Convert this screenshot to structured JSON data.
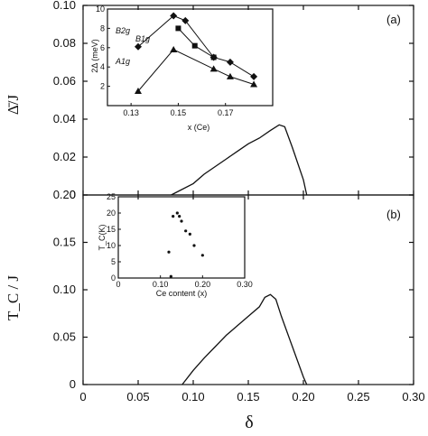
{
  "chart_data": [
    {
      "id": "main_a",
      "type": "line",
      "panel_label": "(a)",
      "ylabel": "Δ̄/J",
      "xlim": [
        0,
        0.3
      ],
      "ylim": [
        0,
        0.1
      ],
      "xticks": [
        0,
        0.05,
        0.1,
        0.15,
        0.2,
        0.25,
        0.3
      ],
      "yticks": [
        0,
        0.02,
        0.04,
        0.06,
        0.08,
        0.1
      ],
      "ytick_labels": [
        "0",
        "0.02",
        "0.04",
        "0.06",
        "0.08",
        "0.10"
      ],
      "x": [
        0.08,
        0.1,
        0.11,
        0.12,
        0.13,
        0.14,
        0.15,
        0.16,
        0.17,
        0.178,
        0.183,
        0.19,
        0.2,
        0.203
      ],
      "y": [
        0.0,
        0.006,
        0.011,
        0.015,
        0.019,
        0.023,
        0.027,
        0.03,
        0.034,
        0.037,
        0.036,
        0.025,
        0.008,
        0.0
      ]
    },
    {
      "id": "main_b",
      "type": "line",
      "panel_label": "(b)",
      "xlabel": "δ",
      "ylabel": "T_C / J",
      "xlim": [
        0,
        0.3
      ],
      "ylim": [
        0,
        0.2
      ],
      "xticks": [
        0,
        0.05,
        0.1,
        0.15,
        0.2,
        0.25,
        0.3
      ],
      "xtick_labels": [
        "0",
        "0.05",
        "0.10",
        "0.15",
        "0.20",
        "0.25",
        "0.30"
      ],
      "yticks": [
        0,
        0.05,
        0.1,
        0.15,
        0.2
      ],
      "ytick_labels": [
        "0",
        "0.05",
        "0.10",
        "0.15",
        "0.20"
      ],
      "x": [
        0.09,
        0.1,
        0.11,
        0.12,
        0.13,
        0.14,
        0.15,
        0.16,
        0.165,
        0.17,
        0.175,
        0.18,
        0.19,
        0.2,
        0.203
      ],
      "y": [
        0.0,
        0.015,
        0.028,
        0.04,
        0.052,
        0.062,
        0.072,
        0.082,
        0.092,
        0.095,
        0.09,
        0.072,
        0.04,
        0.008,
        0.0
      ]
    },
    {
      "id": "inset_a",
      "type": "line",
      "xlabel": "x (Ce)",
      "ylabel": "2Δ (meV)",
      "xlim": [
        0.12,
        0.19
      ],
      "ylim": [
        0,
        10
      ],
      "xticks": [
        0.13,
        0.15,
        0.17
      ],
      "yticks": [
        2,
        4,
        6,
        8,
        10
      ],
      "series": [
        {
          "name": "B2g",
          "marker": "diamond",
          "x": [
            0.133,
            0.148,
            0.153,
            0.165,
            0.172,
            0.182
          ],
          "y": [
            6.1,
            9.3,
            8.8,
            5.0,
            4.5,
            3.0
          ]
        },
        {
          "name": "B1g",
          "marker": "square",
          "x": [
            0.15,
            0.157,
            0.165
          ],
          "y": [
            8.0,
            6.2,
            5.0
          ]
        },
        {
          "name": "A1g",
          "marker": "triangle",
          "x": [
            0.133,
            0.148,
            0.165,
            0.172,
            0.182
          ],
          "y": [
            1.5,
            5.8,
            3.8,
            3.0,
            2.2
          ]
        }
      ]
    },
    {
      "id": "inset_b",
      "type": "scatter",
      "xlabel": "Ce content (x)",
      "ylabel": "T_C(K)",
      "xlim": [
        0,
        0.3
      ],
      "ylim": [
        0,
        25
      ],
      "xticks": [
        0,
        0.1,
        0.2,
        0.3
      ],
      "xtick_labels": [
        "0",
        "0.10",
        "0.20",
        "0.30"
      ],
      "yticks": [
        0,
        5,
        10,
        15,
        20,
        25
      ],
      "x": [
        0.12,
        0.13,
        0.14,
        0.145,
        0.15,
        0.16,
        0.17,
        0.18,
        0.2,
        0.125
      ],
      "y": [
        8.0,
        19.0,
        20.0,
        19.0,
        17.5,
        14.5,
        13.5,
        10.0,
        7.0,
        0.5
      ]
    }
  ]
}
